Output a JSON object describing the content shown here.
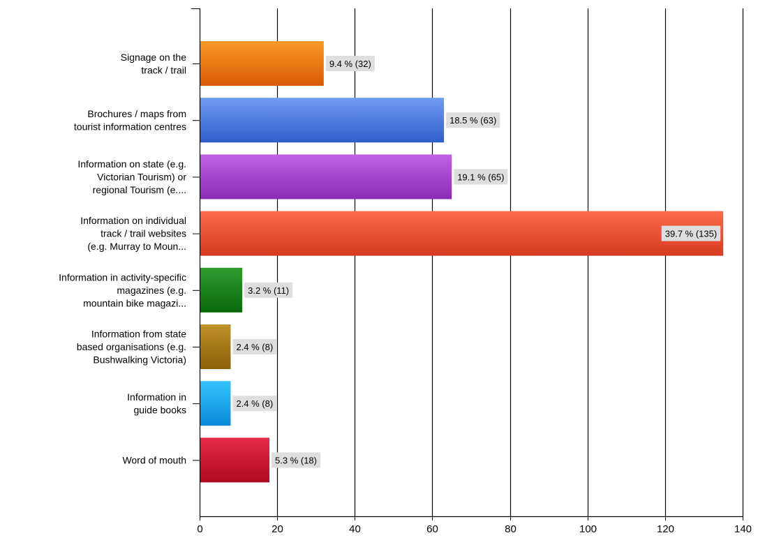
{
  "chart_data": {
    "type": "bar",
    "orientation": "horizontal",
    "title": "",
    "xlabel": "",
    "ylabel": "",
    "xlim": [
      0,
      140
    ],
    "x_ticks": [
      0,
      20,
      40,
      60,
      80,
      100,
      120,
      140
    ],
    "grid": "vertical",
    "legend": "none",
    "categories": [
      [
        "Signage on the",
        "track / trail"
      ],
      [
        "Brochures / maps from",
        "tourist information centres"
      ],
      [
        "Information on state (e.g.",
        "Victorian Tourism) or",
        "regional Tourism (e...."
      ],
      [
        "Information on individual",
        "track / trail websites",
        "(e.g. Murray to Moun..."
      ],
      [
        "Information in activity-specific",
        "magazines (e.g.",
        "mountain bike magazi..."
      ],
      [
        "Information from state",
        "based organisations (e.g.",
        "Bushwalking Victoria)"
      ],
      [
        "Information in",
        "guide books"
      ],
      [
        "Word of mouth"
      ]
    ],
    "values": [
      32,
      63,
      65,
      135,
      11,
      8,
      8,
      18
    ],
    "data_labels": [
      "9.4 % (32)",
      "18.5 % (63)",
      "19.1 % (65)",
      "39.7 % (135)",
      "3.2 % (11)",
      "2.4 % (8)",
      "2.4 % (8)",
      "5.3 % (18)"
    ],
    "colors": [
      [
        "#fb9a2c",
        "#d75b00"
      ],
      [
        "#6f9cf0",
        "#2f5ecb"
      ],
      [
        "#c063e3",
        "#8a2bb5"
      ],
      [
        "#fb6a4a",
        "#d63a20"
      ],
      [
        "#2f9a2f",
        "#0a6a0a"
      ],
      [
        "#c0922a",
        "#8a5f08"
      ],
      [
        "#35c3fb",
        "#0a8ad8"
      ],
      [
        "#e52a48",
        "#b00a22"
      ]
    ]
  }
}
